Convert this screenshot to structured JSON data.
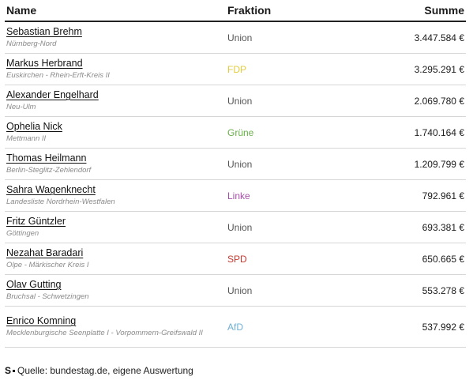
{
  "header": {
    "name": "Name",
    "fraktion": "Fraktion",
    "summe": "Summe"
  },
  "rows": [
    {
      "name": "Sebastian Brehm",
      "district": "Nürnberg-Nord",
      "fraktion": "Union",
      "color": "#555555",
      "summe": "3.447.584 €"
    },
    {
      "name": "Markus Herbrand",
      "district": "Euskirchen - Rhein-Erft-Kreis II",
      "fraktion": "FDP",
      "color": "#e3cd3c",
      "summe": "3.295.291 €"
    },
    {
      "name": "Alexander Engelhard",
      "district": "Neu-Ulm",
      "fraktion": "Union",
      "color": "#555555",
      "summe": "2.069.780 €"
    },
    {
      "name": "Ophelia Nick",
      "district": "Mettmann II",
      "fraktion": "Grüne",
      "color": "#6aae4a",
      "summe": "1.740.164 €"
    },
    {
      "name": "Thomas Heilmann",
      "district": "Berlin-Steglitz-Zehlendorf",
      "fraktion": "Union",
      "color": "#555555",
      "summe": "1.209.799 €"
    },
    {
      "name": "Sahra Wagenknecht",
      "district": "Landesliste Nordrhein-Westfalen",
      "fraktion": "Linke",
      "color": "#a64fa8",
      "summe": "792.961 €"
    },
    {
      "name": "Fritz Güntzler",
      "district": "Göttingen",
      "fraktion": "Union",
      "color": "#555555",
      "summe": "693.381 €"
    },
    {
      "name": "Nezahat Baradari",
      "district": "Olpe - Märkischer Kreis I",
      "fraktion": "SPD",
      "color": "#c9382e",
      "summe": "650.665 €"
    },
    {
      "name": "Olav Gutting",
      "district": "Bruchsal - Schwetzingen",
      "fraktion": "Union",
      "color": "#555555",
      "summe": "553.278 €"
    },
    {
      "name": "Enrico Komning",
      "district": "Mecklenburgische Seenplatte I - Vorpommern-Greifswald II",
      "fraktion": "AfD",
      "color": "#6fb0d6",
      "summe": "537.992 €"
    }
  ],
  "source": {
    "logo": "S",
    "text": "Quelle: bundestag.de, eigene Auswertung"
  }
}
